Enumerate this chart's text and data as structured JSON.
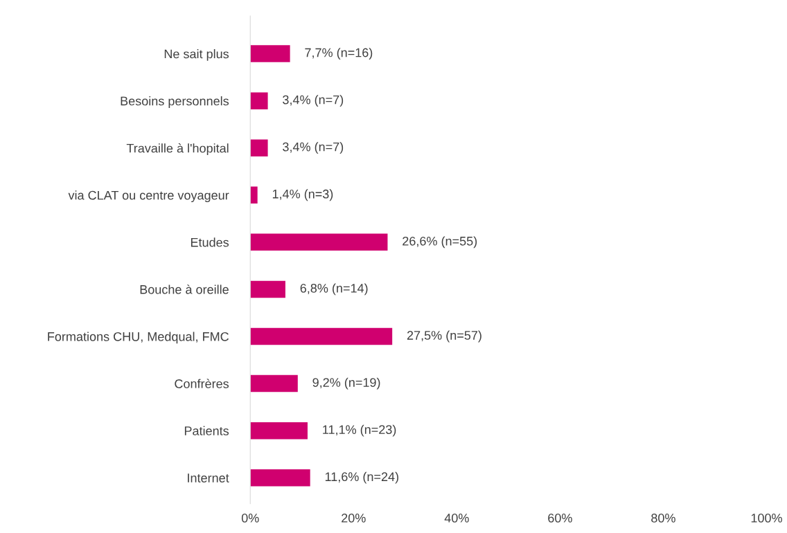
{
  "chart_data": {
    "type": "bar",
    "orientation": "horizontal",
    "categories": [
      "Ne sait plus",
      "Besoins personnels",
      "Travaille à l'hopital",
      "via CLAT ou centre voyageur",
      "Etudes",
      "Bouche à oreille",
      "Formations CHU, Medqual, FMC",
      "Confrères",
      "Patients",
      "Internet"
    ],
    "values": [
      7.7,
      3.4,
      3.4,
      1.4,
      26.6,
      6.8,
      27.5,
      9.2,
      11.1,
      11.6
    ],
    "value_labels": [
      "7,7% (n=16)",
      "3,4% (n=7)",
      "3,4% (n=7)",
      "1,4% (n=3)",
      "26,6% (n=55)",
      "6,8% (n=14)",
      "27,5% (n=57)",
      "9,2% (n=19)",
      "11,1% (n=23)",
      "11,6% (n=24)"
    ],
    "color": "#d0006f",
    "xlim": [
      0,
      100
    ],
    "xticks": [
      {
        "value": 0,
        "label": "0%"
      },
      {
        "value": 20,
        "label": "20%"
      },
      {
        "value": 40,
        "label": "40%"
      },
      {
        "value": 60,
        "label": "60%"
      },
      {
        "value": 80,
        "label": "80%"
      },
      {
        "value": 100,
        "label": "100%"
      }
    ],
    "grid": false,
    "legend": false
  }
}
